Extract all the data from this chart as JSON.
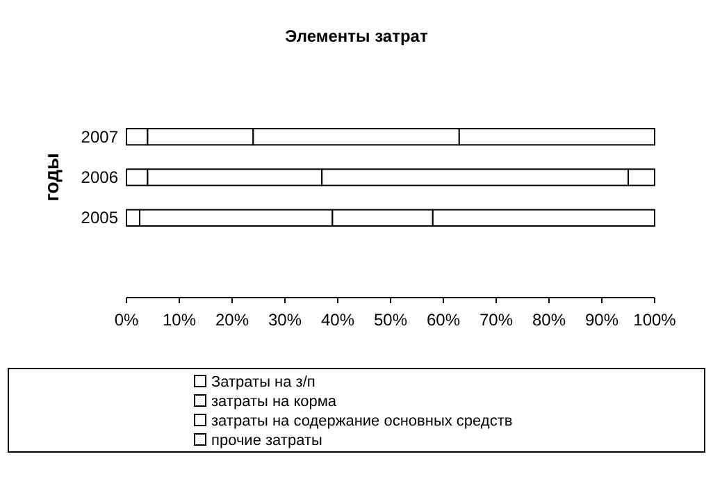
{
  "chart_data": {
    "type": "bar",
    "orientation": "horizontal",
    "stacked": true,
    "title": "Элементы затрат",
    "ylabel": "годы",
    "categories": [
      "2007",
      "2006",
      "2005"
    ],
    "series": [
      {
        "name": "Затраты на з/п",
        "color": "#ffffff",
        "values": [
          4,
          4,
          2.5
        ]
      },
      {
        "name": "затраты на корма",
        "color": "#ffffff",
        "values": [
          20,
          33,
          36.5
        ]
      },
      {
        "name": "затраты на содержание основных средств",
        "color": "#ffffff",
        "values": [
          39,
          58,
          19
        ]
      },
      {
        "name": "прочие затраты",
        "color": "#ffffff",
        "values": [
          37,
          5,
          42
        ]
      }
    ],
    "xlim": [
      0,
      100
    ],
    "xticks": [
      {
        "value": 0,
        "label": "0%"
      },
      {
        "value": 10,
        "label": "10%"
      },
      {
        "value": 20,
        "label": "20%"
      },
      {
        "value": 30,
        "label": "30%"
      },
      {
        "value": 40,
        "label": "40%"
      },
      {
        "value": 50,
        "label": "50%"
      },
      {
        "value": 60,
        "label": "60%"
      },
      {
        "value": 70,
        "label": "70%"
      },
      {
        "value": 80,
        "label": "80%"
      },
      {
        "value": 90,
        "label": "90%"
      },
      {
        "value": 100,
        "label": "100%"
      }
    ],
    "grid": false,
    "legend": "bottom"
  }
}
